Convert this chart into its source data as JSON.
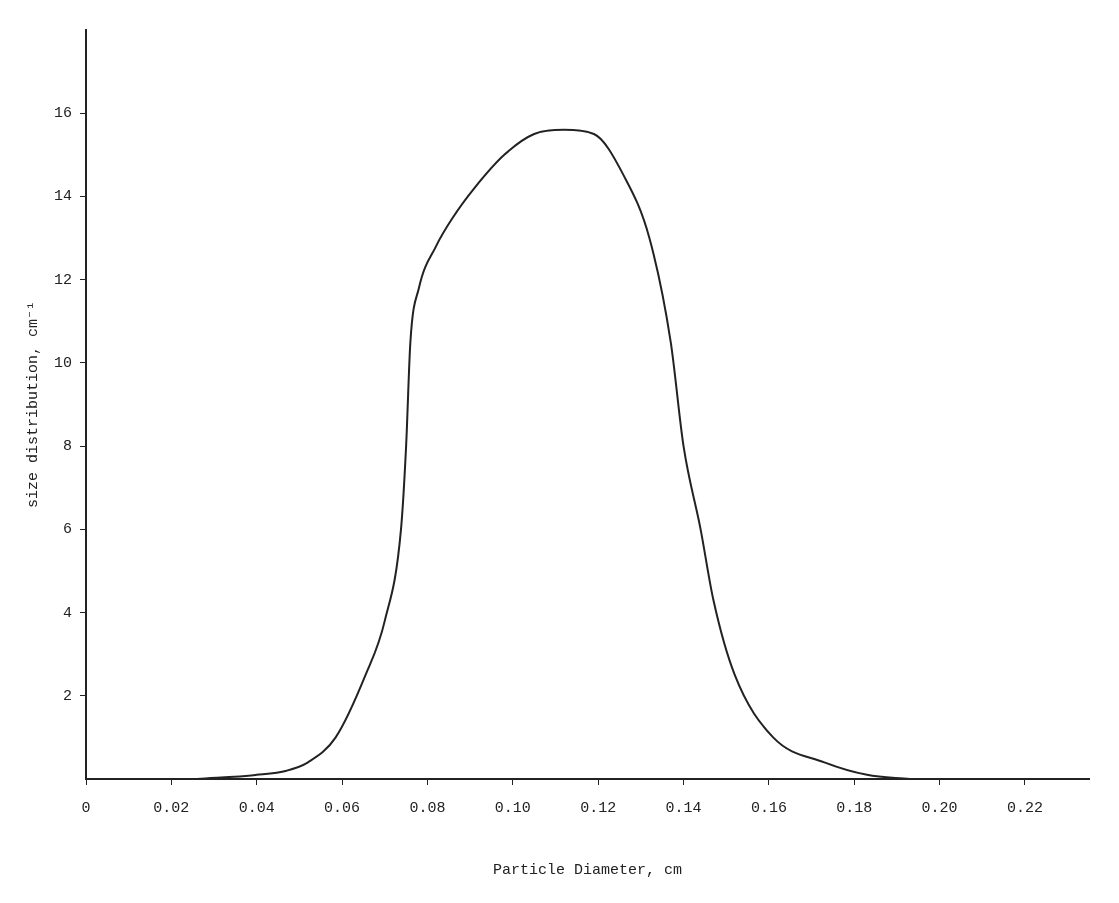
{
  "chart_data": {
    "type": "line",
    "xlabel": "Particle Diameter, cm",
    "ylabel": "size distribution, cm⁻¹",
    "x": [
      0.026,
      0.04,
      0.047,
      0.052,
      0.0585,
      0.0655,
      0.07,
      0.0738,
      0.075,
      0.076,
      0.078,
      0.082,
      0.086,
      0.091,
      0.098,
      0.105,
      0.112,
      0.119,
      0.126,
      0.132,
      0.137,
      0.14,
      0.144,
      0.147,
      0.152,
      0.161,
      0.173,
      0.183,
      0.193
    ],
    "series": [
      {
        "color": "#222222",
        "values": [
          0,
          0.1,
          0.2,
          0.4,
          1.0,
          2.5,
          3.8,
          6,
          8,
          10.5,
          11.8,
          12.8,
          13.5,
          14.2,
          15,
          15.5,
          15.6,
          15.5,
          14.5,
          13,
          10.5,
          8,
          6,
          4.3,
          2.5,
          1.0,
          0.4,
          0.1,
          0
        ]
      }
    ],
    "xlim": [
      0,
      0.235
    ],
    "xticks": [
      {
        "value": 0,
        "label": "0"
      },
      0.02,
      0.04,
      0.06,
      0.08,
      {
        "value": 0.1,
        "label": "0.10"
      },
      0.12,
      0.14,
      0.16,
      0.18,
      {
        "value": 0.2,
        "label": "0.20"
      },
      0.22
    ],
    "ylim": [
      0,
      18
    ],
    "yticks": [
      2,
      4,
      6,
      8,
      10,
      12,
      14,
      16
    ],
    "grid": false,
    "legend": false,
    "marker": "none",
    "line_style": "solid"
  }
}
